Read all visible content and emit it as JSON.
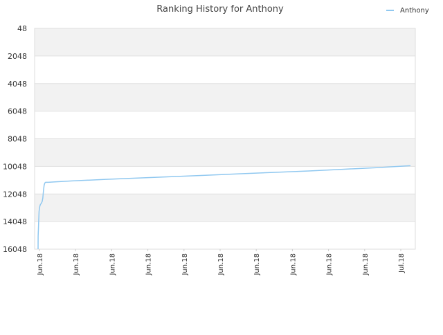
{
  "chart_data": {
    "type": "line",
    "title": "Ranking History for Anthony",
    "xlabel": "",
    "ylabel": "",
    "y_inverted": true,
    "ylim": [
      48,
      16048
    ],
    "y_ticks": [
      48,
      2048,
      4048,
      6048,
      8048,
      10048,
      12048,
      14048,
      16048
    ],
    "x_tick_labels": [
      "Jun.18",
      "Jun.18",
      "Jun.18",
      "Jun.18",
      "Jun.18",
      "Jun.18",
      "Jun.18",
      "Jun.18",
      "Jun.18",
      "Jun.18",
      "Jul.18"
    ],
    "grid": true,
    "alternating_bands": true,
    "legend_position": "top-right",
    "colors": {
      "series": "#90c8f0",
      "band": "#f2f2f2",
      "grid": "#e0e0e0",
      "text": "#333333"
    },
    "series": [
      {
        "name": "Anthony",
        "x": [
          0.0,
          0.02,
          0.1,
          0.2,
          0.3,
          0.5,
          0.7,
          0.9,
          1.2,
          1.4,
          1.6,
          1.8,
          2.0,
          2.2,
          2.5,
          3,
          5,
          10,
          20,
          30,
          40,
          50,
          60,
          70,
          80,
          90,
          100,
          110
        ],
        "values": [
          16048,
          15100,
          14600,
          13900,
          13300,
          12950,
          12800,
          12750,
          12600,
          12350,
          11800,
          11400,
          11250,
          11200,
          11200,
          11200,
          11170,
          11100,
          10990,
          10890,
          10790,
          10690,
          10580,
          10480,
          10380,
          10260,
          10140,
          10000
        ]
      }
    ]
  }
}
